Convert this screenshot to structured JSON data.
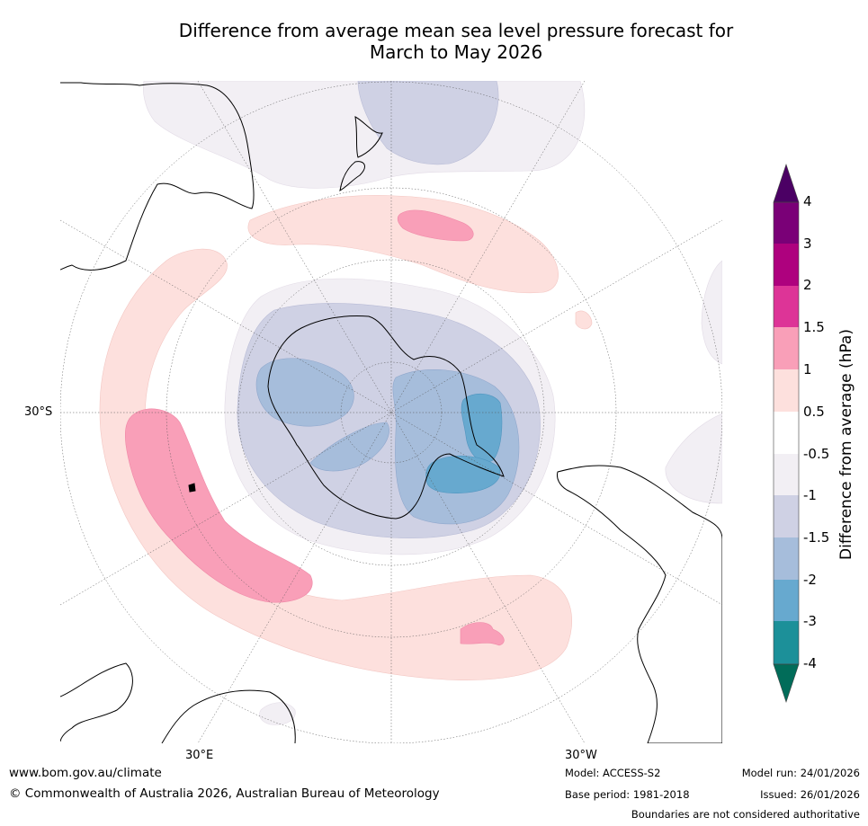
{
  "title_line1": "Difference from average mean sea level pressure forecast for",
  "title_line2": "March to May 2026",
  "map": {
    "projection": "south-polar-stereographic",
    "lat_label": "30°S",
    "lon_label_east": "30°E",
    "lon_label_west": "30°W"
  },
  "colorbar": {
    "title": "Difference from average (hPa)",
    "levels": [
      "4",
      "3",
      "2",
      "1.5",
      "1",
      "0.5",
      "-0.5",
      "-1",
      "-1.5",
      "-2",
      "-3",
      "-4"
    ],
    "colors": {
      "above_4": "#4b0064",
      "c3_4": "#7a0077",
      "c2_3": "#ae017e",
      "c15_2": "#dd3497",
      "c1_15": "#f99fb8",
      "c05_1": "#fde0dd",
      "neutral": "#ffffff",
      "cm1_m05": "#f2eff4",
      "cm15_m1": "#cfd1e4",
      "cm2_m15": "#a6bddb",
      "cm3_m2": "#67a9cf",
      "cm4_m3": "#1c9099",
      "below_m4": "#016c59"
    }
  },
  "footer": {
    "website": "www.bom.gov.au/climate",
    "copyright": "© Commonwealth of Australia 2026, Australian Bureau of Meteorology",
    "model": "Model: ACCESS-S2",
    "base_period": "Base period: 1981-2018",
    "model_run": "Model run: 24/01/2026",
    "issued": "Issued: 26/01/2026",
    "disclaimer": "Boundaries are not considered authoritative"
  }
}
